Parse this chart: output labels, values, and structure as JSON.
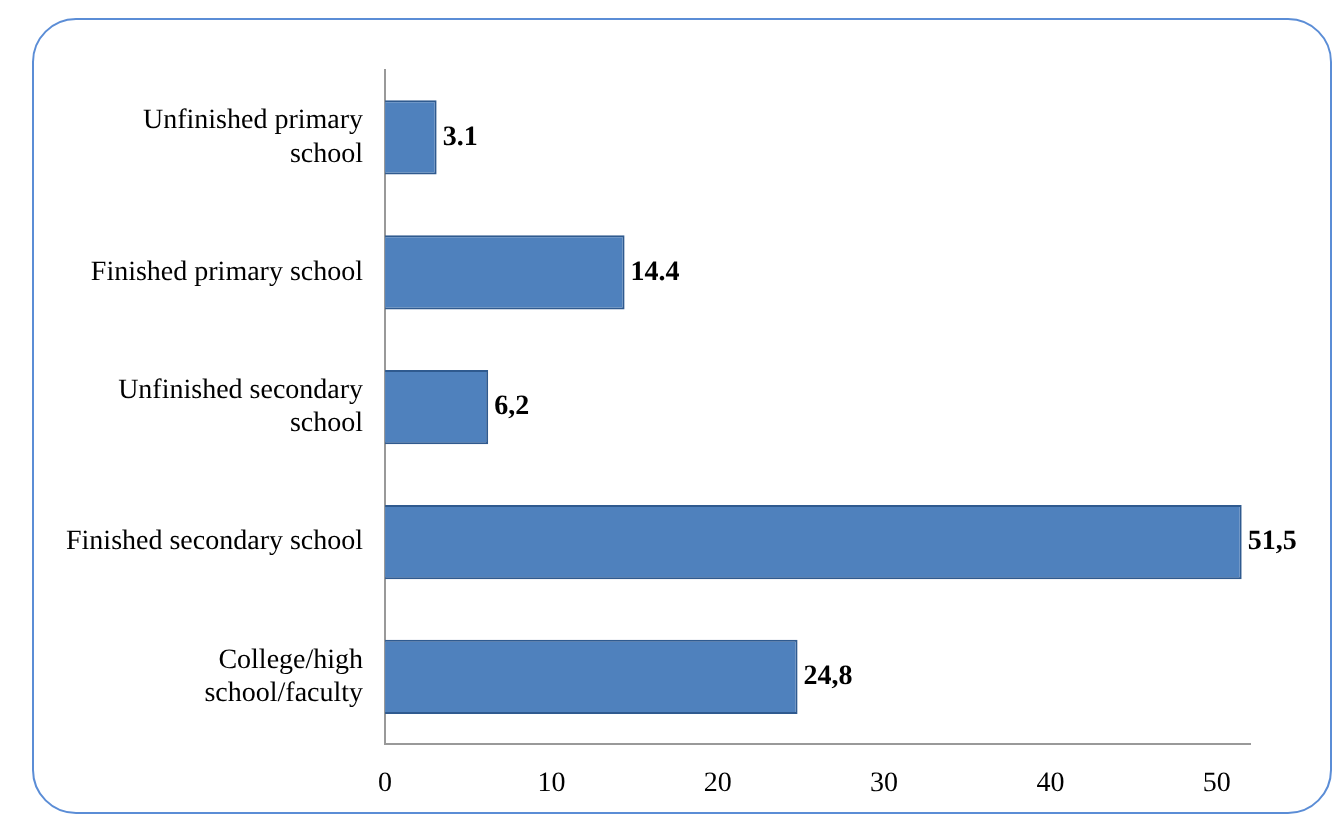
{
  "chart_data": {
    "type": "bar",
    "orientation": "horizontal",
    "categories": [
      "Unfinished primary school",
      "Finished primary school",
      "Unfinished secondary school",
      "Finished secondary school",
      "College/high school/faculty"
    ],
    "values": [
      3.1,
      14.4,
      6.2,
      51.5,
      24.8
    ],
    "value_labels": [
      "3.1",
      "14.4",
      "6,2",
      "51,5",
      "24,8"
    ],
    "color": "#4f81bd",
    "xlim": [
      0,
      52
    ],
    "xticks": [
      0,
      10,
      20,
      30,
      40,
      50
    ],
    "grid": false,
    "legend": false
  }
}
